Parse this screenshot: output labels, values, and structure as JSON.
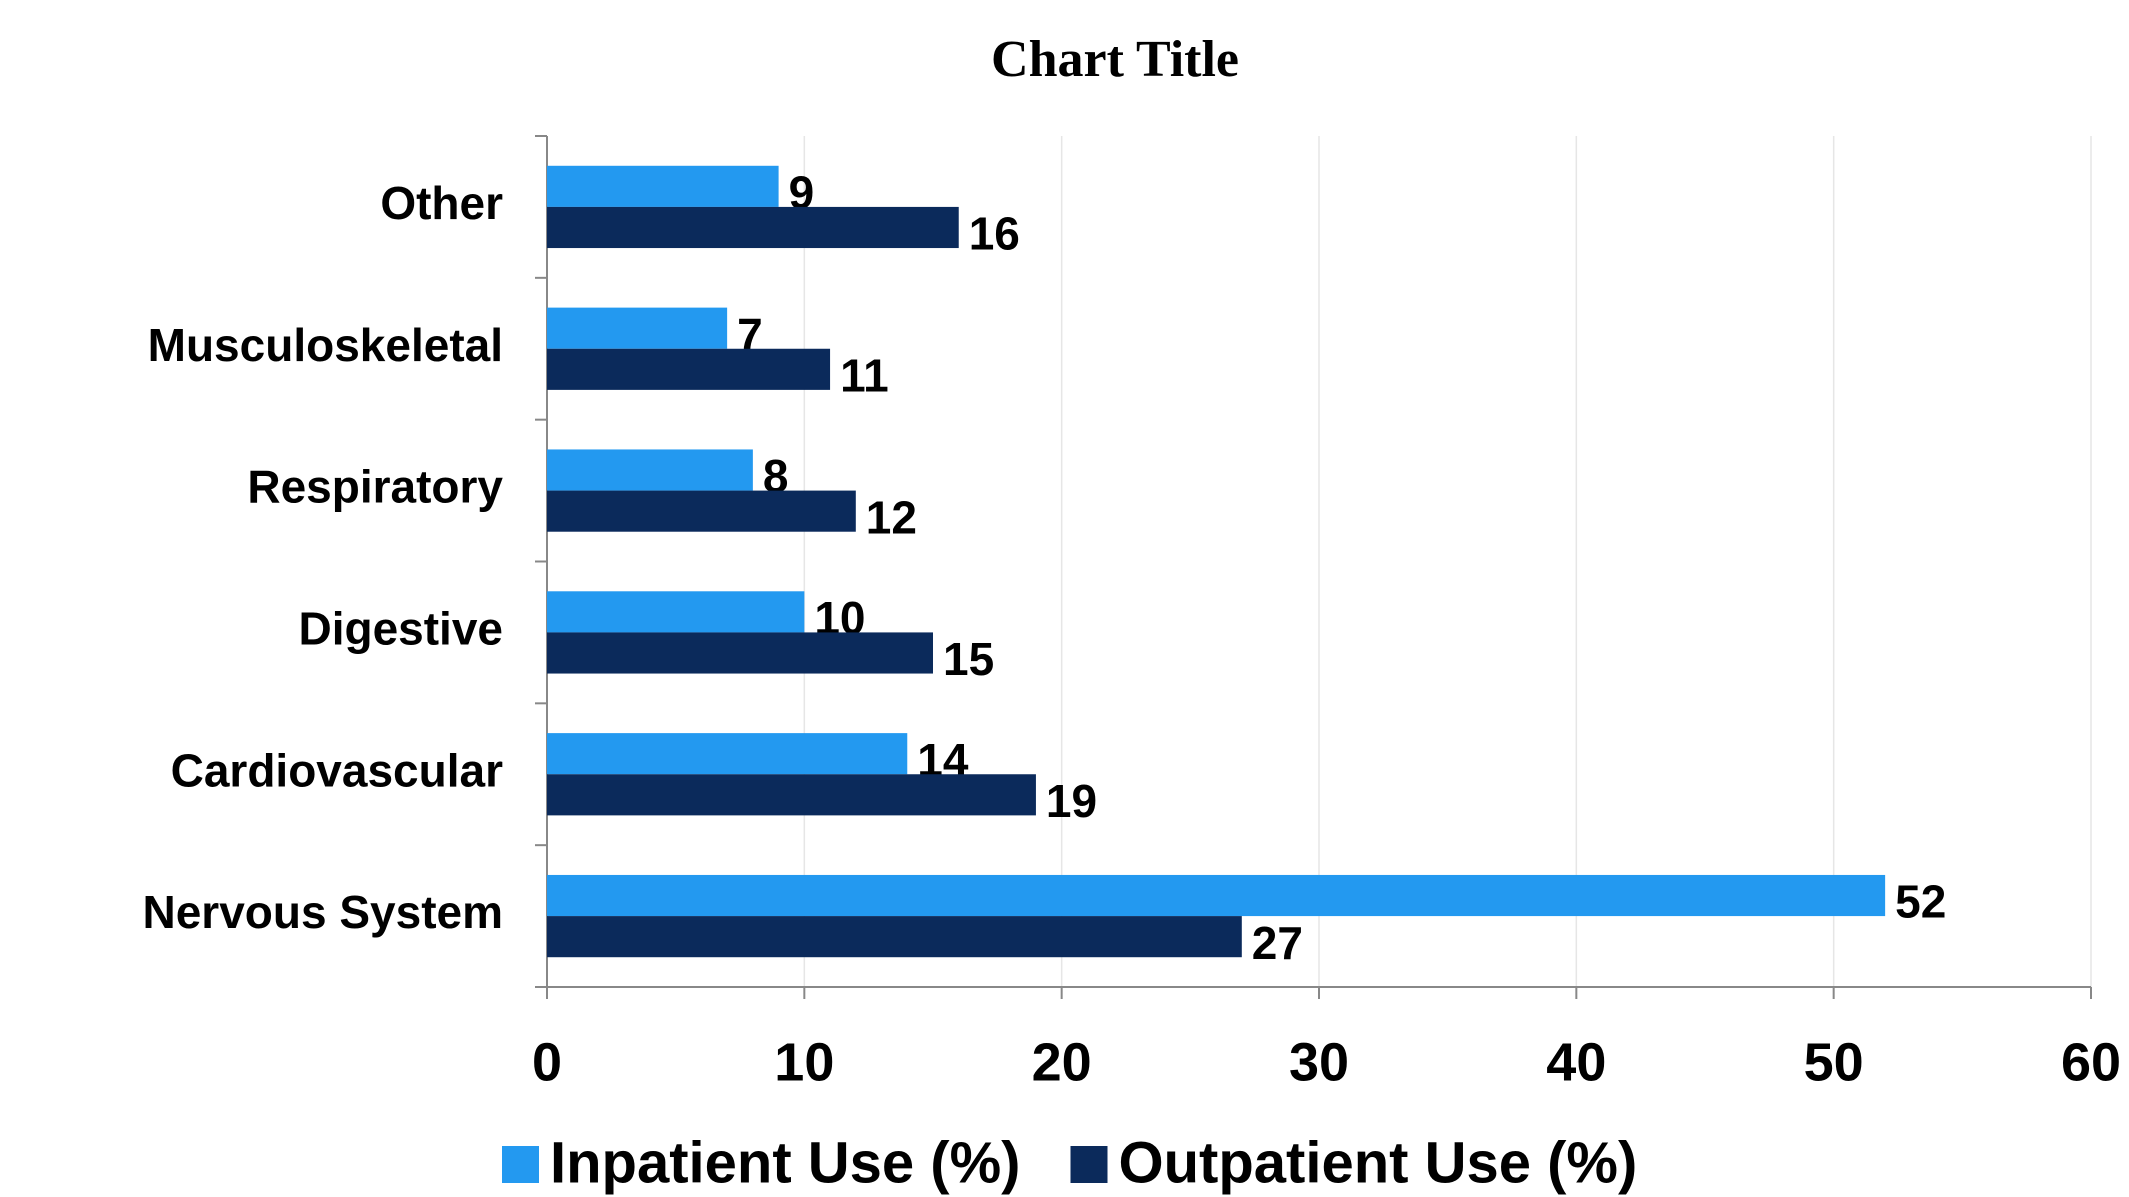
{
  "chart_data": {
    "type": "hbar",
    "title": "Chart Title",
    "categories": [
      "Nervous System",
      "Cardiovascular",
      "Digestive",
      "Respiratory",
      "Musculoskeletal",
      "Other"
    ],
    "series": [
      {
        "name": "Inpatient Use (%)",
        "color": "#2399f0",
        "values": [
          52,
          14,
          10,
          8,
          7,
          9
        ]
      },
      {
        "name": "Outpatient Use (%)",
        "color": "#0b2a5b",
        "values": [
          27,
          19,
          15,
          12,
          11,
          16
        ]
      }
    ],
    "xlim": [
      0,
      60
    ],
    "xticks": [
      0,
      10,
      20,
      30,
      40,
      50,
      60
    ],
    "grid": true,
    "legend": "bottom"
  }
}
